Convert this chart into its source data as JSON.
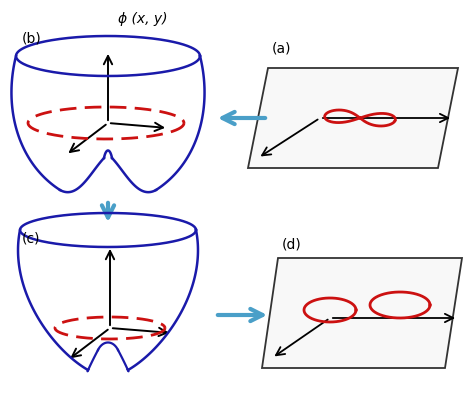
{
  "fig_width": 4.74,
  "fig_height": 4.05,
  "dpi": 100,
  "bg_color": "#ffffff",
  "blue_arrow_color": "#4a9fc8",
  "blue_surface_color": "#1a1aaa",
  "red_curve_color": "#cc1111",
  "axis_color": "#000000",
  "label_a": "(a)",
  "label_b": "(b)",
  "label_c": "(c)",
  "label_d": "(d)",
  "phi_label": "ϕ (x, y)"
}
